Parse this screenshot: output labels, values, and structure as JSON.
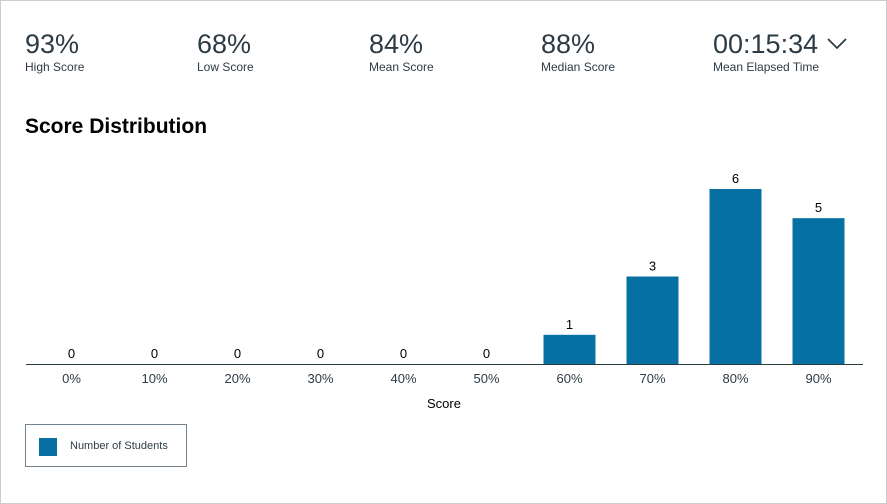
{
  "stats": [
    {
      "value": "93%",
      "label": "High Score"
    },
    {
      "value": "68%",
      "label": "Low Score"
    },
    {
      "value": "84%",
      "label": "Mean Score"
    },
    {
      "value": "88%",
      "label": "Median Score"
    },
    {
      "value": "00:15:34",
      "label": "Mean Elapsed Time"
    }
  ],
  "icons": {
    "expand": "chevron-down-icon"
  },
  "section_title": "Score Distribution",
  "colors": {
    "bar": "#0770a3",
    "axis": "#2d3b45",
    "text": "#2d3b45"
  },
  "chart_data": {
    "type": "bar",
    "categories": [
      "0%",
      "10%",
      "20%",
      "30%",
      "40%",
      "50%",
      "60%",
      "70%",
      "80%",
      "90%"
    ],
    "series": [
      {
        "name": "Number of Students",
        "values": [
          0,
          0,
          0,
          0,
          0,
          0,
          1,
          3,
          6,
          5
        ]
      }
    ],
    "xlabel": "Score",
    "ylabel": "",
    "ylim": [
      0,
      6
    ],
    "grid": false,
    "legend": "bottom-left"
  }
}
